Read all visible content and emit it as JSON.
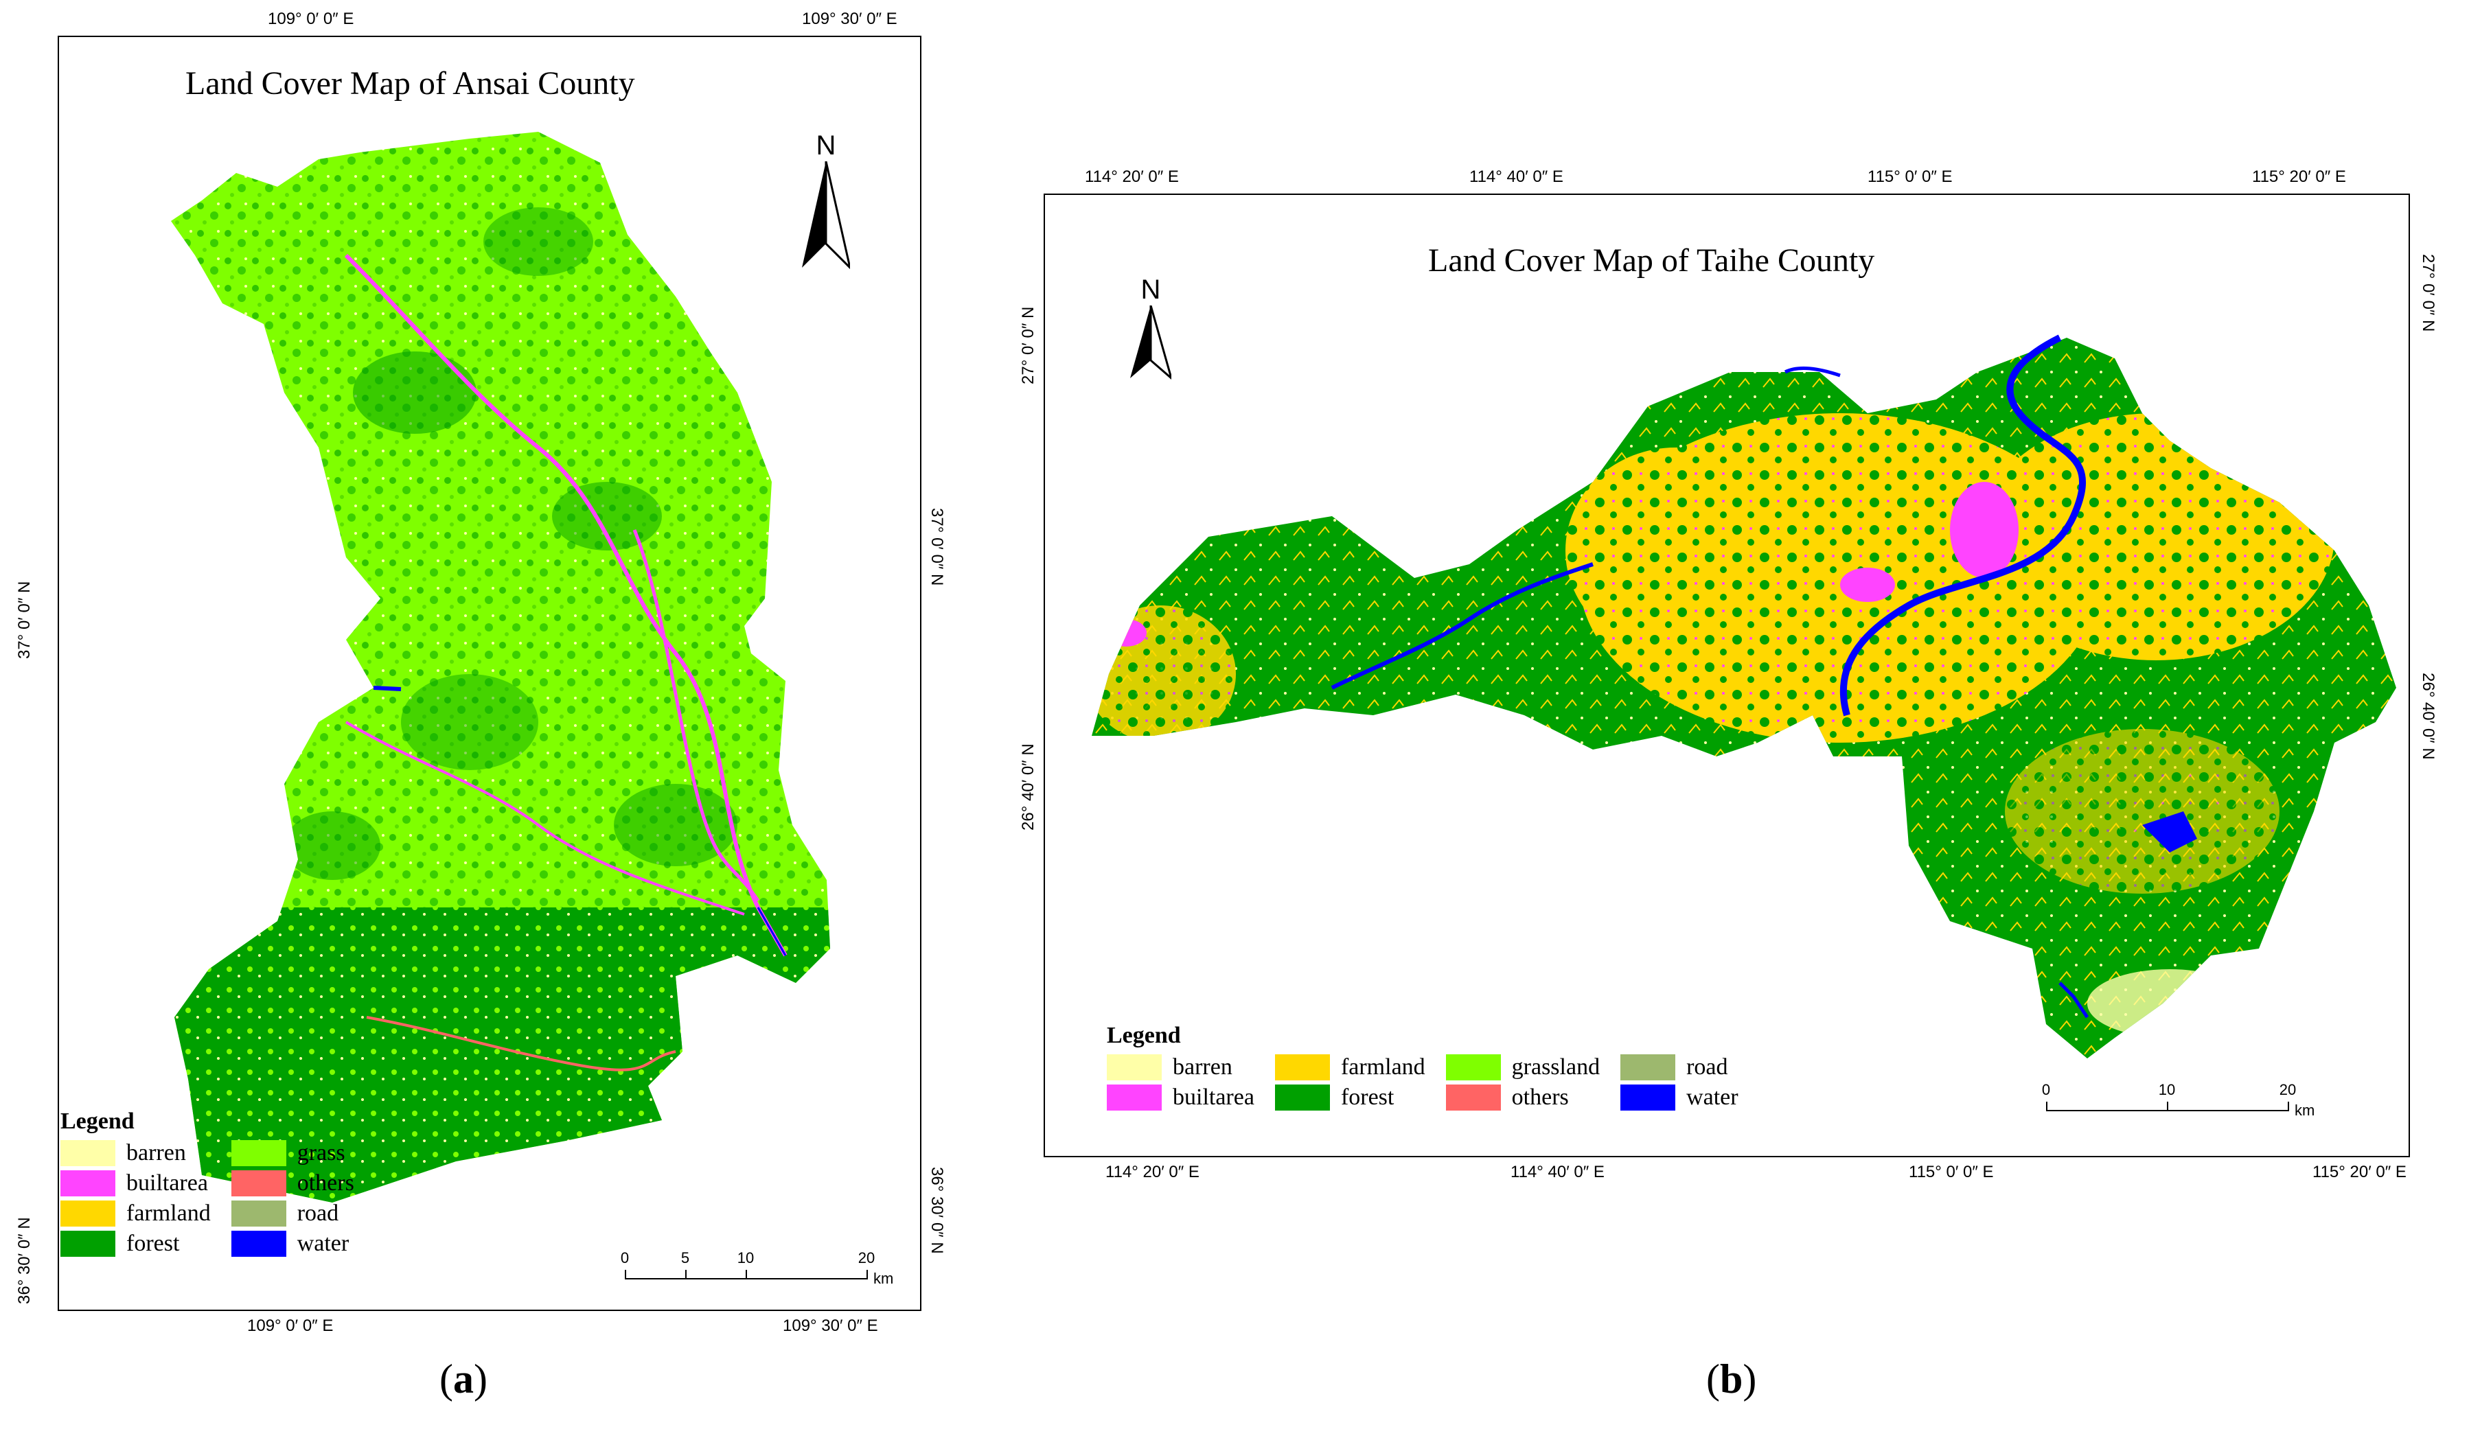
{
  "panel_a": {
    "title": "Land Cover Map of Ansai County",
    "north": "N",
    "coords": {
      "top_left": "109° 0′ 0″ E",
      "top_right": "109° 30′ 0″ E",
      "bottom_left": "109° 0′ 0″ E",
      "bottom_right": "109° 30′ 0″ E",
      "left_mid": "37° 0′ 0″ N",
      "right_mid": "37° 0′ 0″ N",
      "left_bottom": "36° 30′ 0″ N",
      "right_bottom": "36° 30′ 0″ N"
    },
    "legend": {
      "title": "Legend",
      "items": [
        {
          "label": "barren",
          "color": "#FFFFA8"
        },
        {
          "label": "grass",
          "color": "#7FFF00"
        },
        {
          "label": "builtarea",
          "color": "#FF44FF"
        },
        {
          "label": "others",
          "color": "#FF6464"
        },
        {
          "label": "farmland",
          "color": "#FFD800"
        },
        {
          "label": "road",
          "color": "#9DB86E"
        },
        {
          "label": "forest",
          "color": "#00A000"
        },
        {
          "label": "water",
          "color": "#0000FF"
        }
      ]
    },
    "scale": {
      "ticks": [
        "0",
        "5",
        "10",
        "20"
      ],
      "unit": "km"
    },
    "caption_letter": "a"
  },
  "panel_b": {
    "title": "Land Cover Map of Taihe County",
    "north": "N",
    "coords": {
      "top_1": "114° 20′ 0″ E",
      "top_2": "114° 40′ 0″ E",
      "top_3": "115° 0′ 0″ E",
      "top_4": "115° 20′ 0″ E",
      "bottom_1": "114° 20′ 0″ E",
      "bottom_2": "114° 40′ 0″ E",
      "bottom_3": "115° 0′ 0″ E",
      "bottom_4": "115° 20′ 0″ E",
      "left_1": "27° 0′ 0″ N",
      "left_2": "26° 40′ 0″ N",
      "right_1": "27° 0′ 0″ N",
      "right_2": "26° 40′ 0″ N"
    },
    "legend": {
      "title": "Legend",
      "items": [
        {
          "label": "barren",
          "color": "#FFFFA8"
        },
        {
          "label": "farmland",
          "color": "#FFD800"
        },
        {
          "label": "grassland",
          "color": "#7FFF00"
        },
        {
          "label": "road",
          "color": "#9DB86E"
        },
        {
          "label": "builtarea",
          "color": "#FF44FF"
        },
        {
          "label": "forest",
          "color": "#00A000"
        },
        {
          "label": "others",
          "color": "#FF6464"
        },
        {
          "label": "water",
          "color": "#0000FF"
        }
      ]
    },
    "scale": {
      "ticks": [
        "0",
        "10",
        "20"
      ],
      "unit": "km"
    },
    "caption_letter": "b"
  },
  "colors": {
    "grass": "#7FFF00",
    "forest": "#00A000",
    "farmland": "#FFD800",
    "builtarea": "#FF44FF",
    "water": "#0000FF",
    "barren": "#FFFFA8",
    "others": "#FF6464"
  }
}
